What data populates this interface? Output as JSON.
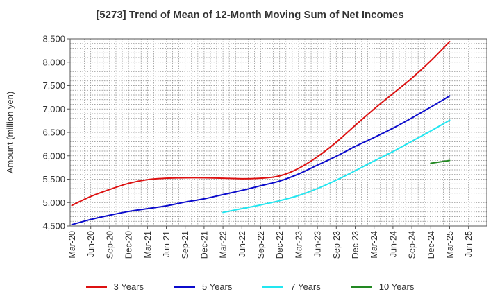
{
  "chart_data": {
    "type": "line",
    "title": "[5273]  Trend of Mean of 12-Month Moving Sum of Net Incomes",
    "xlabel": "",
    "ylabel": "Amount (million yen)",
    "ylim": [
      4500,
      8500
    ],
    "yticks": [
      4500,
      5000,
      5500,
      6000,
      6500,
      7000,
      7500,
      8000,
      8500
    ],
    "ytick_labels": [
      "4,500",
      "5,000",
      "5,500",
      "6,000",
      "6,500",
      "7,000",
      "7,500",
      "8,000",
      "8,500"
    ],
    "xticks": [
      "Mar-20",
      "Jun-20",
      "Sep-20",
      "Dec-20",
      "Mar-21",
      "Jun-21",
      "Sep-21",
      "Dec-21",
      "Mar-22",
      "Jun-22",
      "Sep-22",
      "Dec-22",
      "Mar-23",
      "Jun-23",
      "Sep-23",
      "Dec-23",
      "Mar-24",
      "Jun-24",
      "Sep-24",
      "Dec-24",
      "Mar-25",
      "Jun-25"
    ],
    "grid": true,
    "legend_position": "bottom",
    "series": [
      {
        "name": "3 Years",
        "color": "#dd1111",
        "points": [
          [
            "Mar-20",
            4940
          ],
          [
            "Jun-20",
            5130
          ],
          [
            "Sep-20",
            5280
          ],
          [
            "Dec-20",
            5410
          ],
          [
            "Mar-21",
            5490
          ],
          [
            "Jun-21",
            5520
          ],
          [
            "Sep-21",
            5530
          ],
          [
            "Dec-21",
            5530
          ],
          [
            "Mar-22",
            5520
          ],
          [
            "Jun-22",
            5510
          ],
          [
            "Sep-22",
            5520
          ],
          [
            "Dec-22",
            5570
          ],
          [
            "Mar-23",
            5730
          ],
          [
            "Jun-23",
            5980
          ],
          [
            "Sep-23",
            6290
          ],
          [
            "Dec-23",
            6650
          ],
          [
            "Mar-24",
            7000
          ],
          [
            "Jun-24",
            7330
          ],
          [
            "Sep-24",
            7660
          ],
          [
            "Dec-24",
            8030
          ],
          [
            "Mar-25",
            8440
          ]
        ]
      },
      {
        "name": "5 Years",
        "color": "#0b0bcc",
        "points": [
          [
            "Mar-20",
            4530
          ],
          [
            "Jun-20",
            4640
          ],
          [
            "Sep-20",
            4730
          ],
          [
            "Dec-20",
            4810
          ],
          [
            "Mar-21",
            4870
          ],
          [
            "Jun-21",
            4930
          ],
          [
            "Sep-21",
            5010
          ],
          [
            "Dec-21",
            5080
          ],
          [
            "Mar-22",
            5170
          ],
          [
            "Jun-22",
            5260
          ],
          [
            "Sep-22",
            5360
          ],
          [
            "Dec-22",
            5460
          ],
          [
            "Mar-23",
            5610
          ],
          [
            "Jun-23",
            5800
          ],
          [
            "Sep-23",
            5990
          ],
          [
            "Dec-23",
            6200
          ],
          [
            "Mar-24",
            6390
          ],
          [
            "Jun-24",
            6590
          ],
          [
            "Sep-24",
            6810
          ],
          [
            "Dec-24",
            7040
          ],
          [
            "Mar-25",
            7280
          ]
        ]
      },
      {
        "name": "7 Years",
        "color": "#22e6f0",
        "points": [
          [
            "Mar-22",
            4790
          ],
          [
            "Jun-22",
            4870
          ],
          [
            "Sep-22",
            4950
          ],
          [
            "Dec-22",
            5040
          ],
          [
            "Mar-23",
            5150
          ],
          [
            "Jun-23",
            5300
          ],
          [
            "Sep-23",
            5480
          ],
          [
            "Dec-23",
            5680
          ],
          [
            "Mar-24",
            5890
          ],
          [
            "Jun-24",
            6090
          ],
          [
            "Sep-24",
            6310
          ],
          [
            "Dec-24",
            6530
          ],
          [
            "Mar-25",
            6760
          ]
        ]
      },
      {
        "name": "10 Years",
        "color": "#228822",
        "points": [
          [
            "Dec-24",
            5840
          ],
          [
            "Mar-25",
            5900
          ]
        ]
      }
    ]
  }
}
